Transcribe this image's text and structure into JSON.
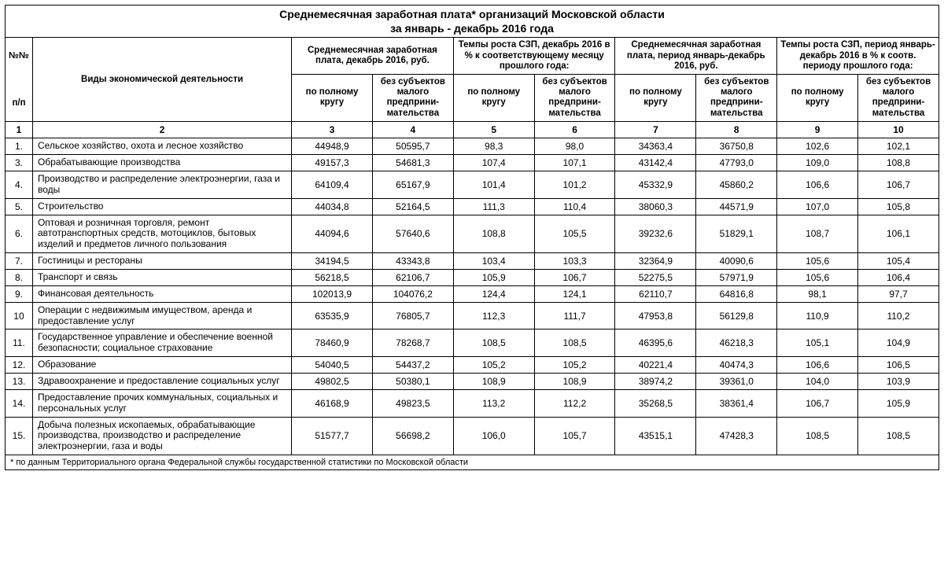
{
  "title_line1": "Среднемесячная заработная плата* организаций Московской области",
  "title_line2": "за январь - декабрь 2016 года",
  "header": {
    "num_top": "№№",
    "num_bot": "п/п",
    "activity": "Виды экономической деятельности",
    "g1": "Среднемесячная заработная плата, декабрь 2016, руб.",
    "g2": "Темпы роста СЗП, декабрь 2016 в % к соответствующему месяцу прошлого года:",
    "g3": "Среднемесячная заработная плата, период январь-декабрь 2016,  руб.",
    "g4": "Темпы роста СЗП, период январь-декабрь 2016 в % к соотв. периоду прошлого года:",
    "sub_full": "по полному кругу",
    "sub_nosmall": "без субъектов малого предприни-мательства"
  },
  "colnums": [
    "1",
    "2",
    "3",
    "4",
    "5",
    "6",
    "7",
    "8",
    "9",
    "10"
  ],
  "rows": [
    {
      "n": "1.",
      "a": "Сельское хозяйство, охота и лесное хозяйство",
      "v": [
        "44948,9",
        "50595,7",
        "98,3",
        "98,0",
        "34363,4",
        "36750,8",
        "102,6",
        "102,1"
      ]
    },
    {
      "n": "3.",
      "a": "Обрабатывающие производства",
      "v": [
        "49157,3",
        "54681,3",
        "107,4",
        "107,1",
        "43142,4",
        "47793,0",
        "109,0",
        "108,8"
      ]
    },
    {
      "n": "4.",
      "a": "Производство и распределение электроэнергии, газа и воды",
      "v": [
        "64109,4",
        "65167,9",
        "101,4",
        "101,2",
        "45332,9",
        "45860,2",
        "106,6",
        "106,7"
      ]
    },
    {
      "n": "5.",
      "a": "Строительство",
      "v": [
        "44034,8",
        "52164,5",
        "111,3",
        "110,4",
        "38060,3",
        "44571,9",
        "107,0",
        "105,8"
      ]
    },
    {
      "n": "6.",
      "a": "Оптовая и розничная торговля, ремонт автотранспортных средств, мотоциклов, бытовых изделий и предметов личного пользования",
      "v": [
        "44094,6",
        "57640,6",
        "108,8",
        "105,5",
        "39232,6",
        "51829,1",
        "108,7",
        "106,1"
      ]
    },
    {
      "n": "7.",
      "a": "Гостиницы и рестораны",
      "v": [
        "34194,5",
        "43343,8",
        "103,4",
        "103,3",
        "32364,9",
        "40090,6",
        "105,6",
        "105,4"
      ]
    },
    {
      "n": "8.",
      "a": "Транспорт и связь",
      "v": [
        "56218,5",
        "62106,7",
        "105,9",
        "106,7",
        "52275,5",
        "57971,9",
        "105,6",
        "106,4"
      ]
    },
    {
      "n": "9.",
      "a": "Финансовая деятельность",
      "v": [
        "102013,9",
        "104076,2",
        "124,4",
        "124,1",
        "62110,7",
        "64816,8",
        "98,1",
        "97,7"
      ]
    },
    {
      "n": "10",
      "a": "Операции с недвижимым имуществом, аренда и предоставление услуг",
      "v": [
        "63535,9",
        "76805,7",
        "112,3",
        "111,7",
        "47953,8",
        "56129,8",
        "110,9",
        "110,2"
      ]
    },
    {
      "n": "11.",
      "a": "Государственное управление и обеспечение военной безопасности; социальное страхование",
      "v": [
        "78460,9",
        "78268,7",
        "108,5",
        "108,5",
        "46395,6",
        "46218,3",
        "105,1",
        "104,9"
      ]
    },
    {
      "n": "12.",
      "a": "Образование",
      "v": [
        "54040,5",
        "54437,2",
        "105,2",
        "105,2",
        "40221,4",
        "40474,3",
        "106,6",
        "106,5"
      ]
    },
    {
      "n": "13.",
      "a": "Здравоохранение и предоставление социальных услуг",
      "v": [
        "49802,5",
        "50380,1",
        "108,9",
        "108,9",
        "38974,2",
        "39361,0",
        "104,0",
        "103,9"
      ]
    },
    {
      "n": "14.",
      "a": "Предоставление прочих коммунальных, социальных и персональных услуг",
      "v": [
        "46168,9",
        "49823,5",
        "113,2",
        "112,2",
        "35268,5",
        "38361,4",
        "106,7",
        "105,9"
      ]
    },
    {
      "n": "15.",
      "a": "Добыча полезных ископаемых, обрабатывающие производства, производство и распределение электроэнергии, газа и воды",
      "v": [
        "51577,7",
        "56698,2",
        "106,0",
        "105,7",
        "43515,1",
        "47428,3",
        "108,5",
        "108,5"
      ]
    }
  ],
  "footnote": "* по данным Территориального органа Федеральной службы государственной статистики по Московской области"
}
